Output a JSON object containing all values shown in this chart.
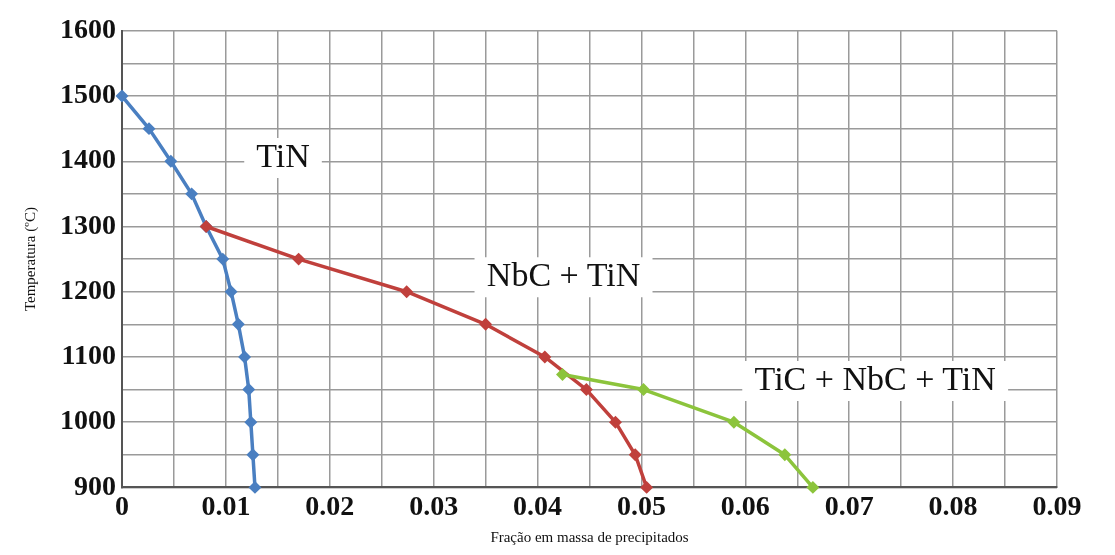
{
  "chart_data": {
    "type": "line",
    "xlabel": "Fração em massa de precipitados",
    "ylabel": "Temperatura (ºC)",
    "xlim": [
      0,
      0.09
    ],
    "ylim": [
      900,
      1600
    ],
    "xticks": [
      0,
      {
        "value": 0.005,
        "label": null
      },
      0.01,
      {
        "value": 0.015,
        "label": null
      },
      0.02,
      {
        "value": 0.025,
        "label": null
      },
      0.03,
      {
        "value": 0.035,
        "label": null
      },
      0.04,
      {
        "value": 0.045,
        "label": null
      },
      0.05,
      {
        "value": 0.055,
        "label": null
      },
      0.06,
      {
        "value": 0.065,
        "label": null
      },
      0.07,
      {
        "value": 0.075,
        "label": null
      },
      0.08,
      {
        "value": 0.085,
        "label": null
      },
      0.09
    ],
    "yticks": [
      900,
      {
        "value": 950,
        "label": null
      },
      1000,
      {
        "value": 1050,
        "label": null
      },
      1100,
      {
        "value": 1150,
        "label": null
      },
      1200,
      {
        "value": 1250,
        "label": null
      },
      1300,
      {
        "value": 1350,
        "label": null
      },
      1400,
      {
        "value": 1450,
        "label": null
      },
      1500,
      {
        "value": 1550,
        "label": null
      },
      1600
    ],
    "grid": true,
    "legend": false,
    "marker": "diamond",
    "line_style": "solid",
    "series": [
      {
        "name": "TiN",
        "color": "#4a7fc1",
        "x": [
          0,
          0.0026,
          0.0047,
          0.0067,
          0.0081,
          0.0097,
          0.0105,
          0.0112,
          0.0118,
          0.0122,
          0.0124,
          0.0126,
          0.0128
        ],
        "values": [
          1500,
          1450,
          1400,
          1350,
          1300,
          1250,
          1200,
          1150,
          1100,
          1050,
          1000,
          950,
          900
        ]
      },
      {
        "name": "NbC + TiN",
        "color": "#c0403c",
        "x": [
          0.0081,
          0.017,
          0.0274,
          0.035,
          0.0407,
          0.0447,
          0.0475,
          0.0494,
          0.0505
        ],
        "values": [
          1300,
          1250,
          1200,
          1150,
          1100,
          1050,
          1000,
          950,
          900
        ]
      },
      {
        "name": "TiC + NbC + TiN",
        "color": "#8cc43c",
        "x": [
          0.0424,
          0.0502,
          0.0589,
          0.0638,
          0.0665
        ],
        "values": [
          1073,
          1050,
          1000,
          950,
          900
        ]
      }
    ]
  }
}
